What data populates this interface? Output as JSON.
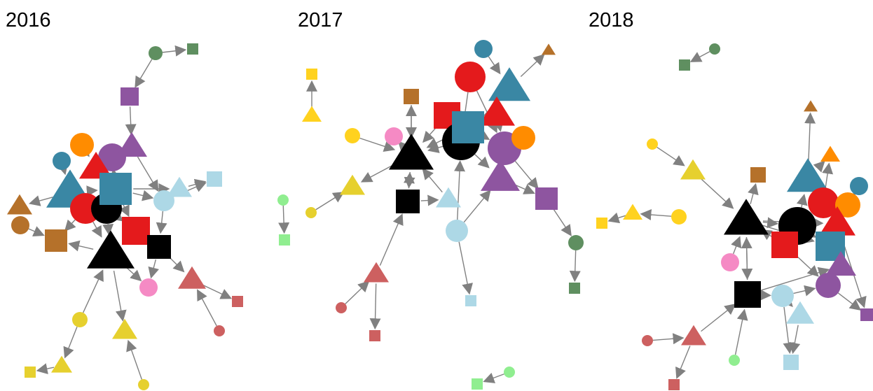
{
  "panels": [
    {
      "title": "2016"
    },
    {
      "title": "2017"
    },
    {
      "title": "2018"
    }
  ]
}
